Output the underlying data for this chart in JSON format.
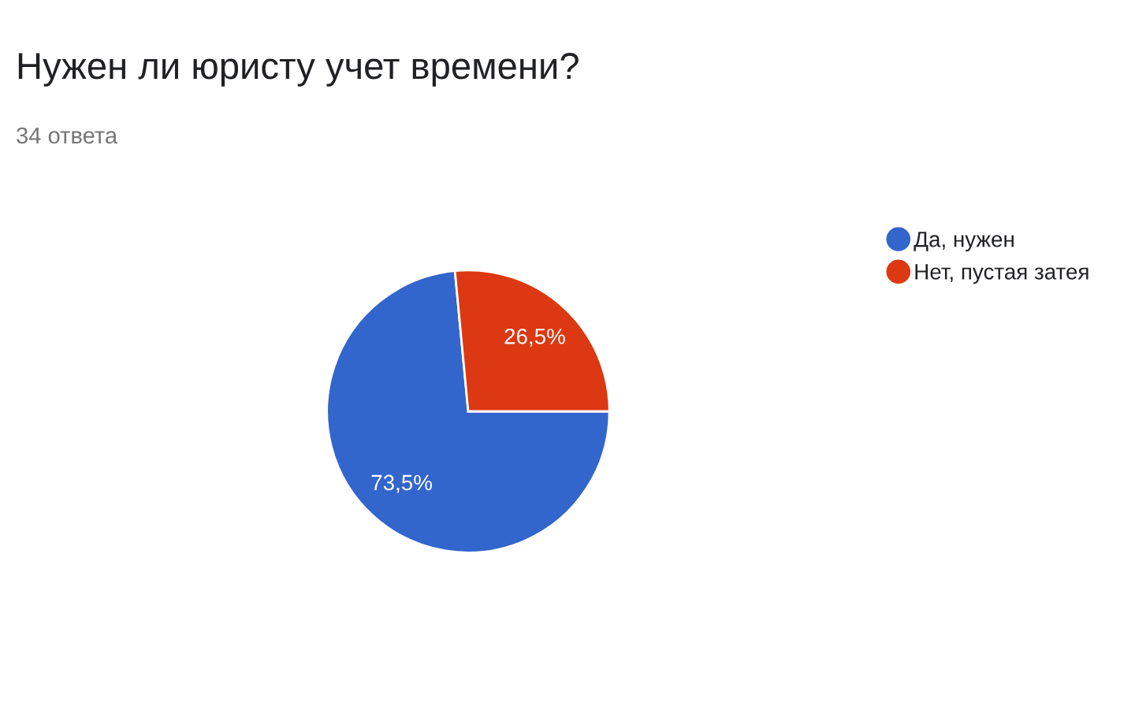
{
  "chart_data": {
    "type": "pie",
    "title": "Нужен ли юристу учет времени?",
    "subtitle": "34 ответа",
    "categories": [
      "Да, нужен",
      "Нет, пустая затея"
    ],
    "values": [
      73.5,
      26.5
    ],
    "colors": [
      "#3366cc",
      "#dc3912"
    ],
    "value_labels": [
      "73,5%",
      "26,5%"
    ],
    "legend": "right"
  }
}
